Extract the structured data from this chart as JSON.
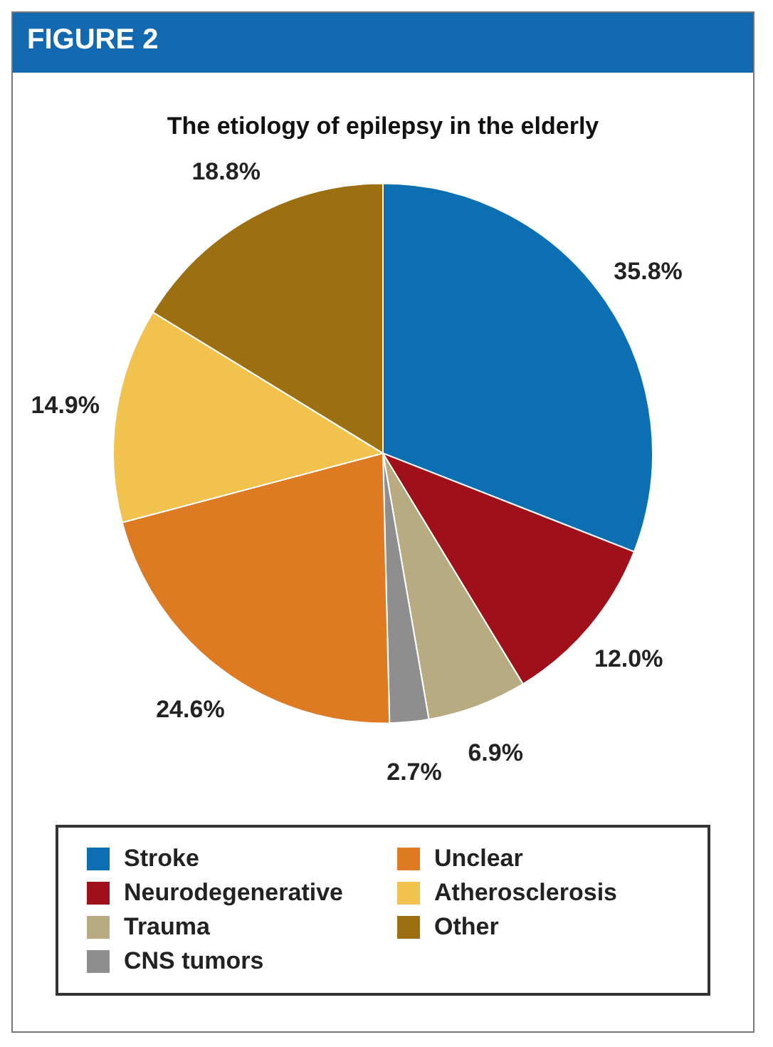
{
  "chart_data": {
    "type": "pie",
    "title": "The etiology of epilepsy in the elderly",
    "annotations": [
      "FIGURE 2"
    ],
    "categories": [
      "Stroke",
      "Neurodegenerative",
      "Trauma",
      "CNS tumors",
      "Unclear",
      "Atherosclerosis",
      "Other"
    ],
    "values": [
      35.8,
      12.0,
      6.9,
      2.7,
      24.6,
      14.9,
      18.8
    ],
    "value_labels": [
      "35.8%",
      "12.0%",
      "6.9%",
      "2.7%",
      "24.6%",
      "14.9%",
      "18.8%"
    ],
    "colors": [
      "#0b6fb2",
      "#a0101a",
      "#b8ab82",
      "#8e8e8e",
      "#de7b22",
      "#f1c24e",
      "#9c6f10"
    ],
    "legend": "bottom"
  }
}
